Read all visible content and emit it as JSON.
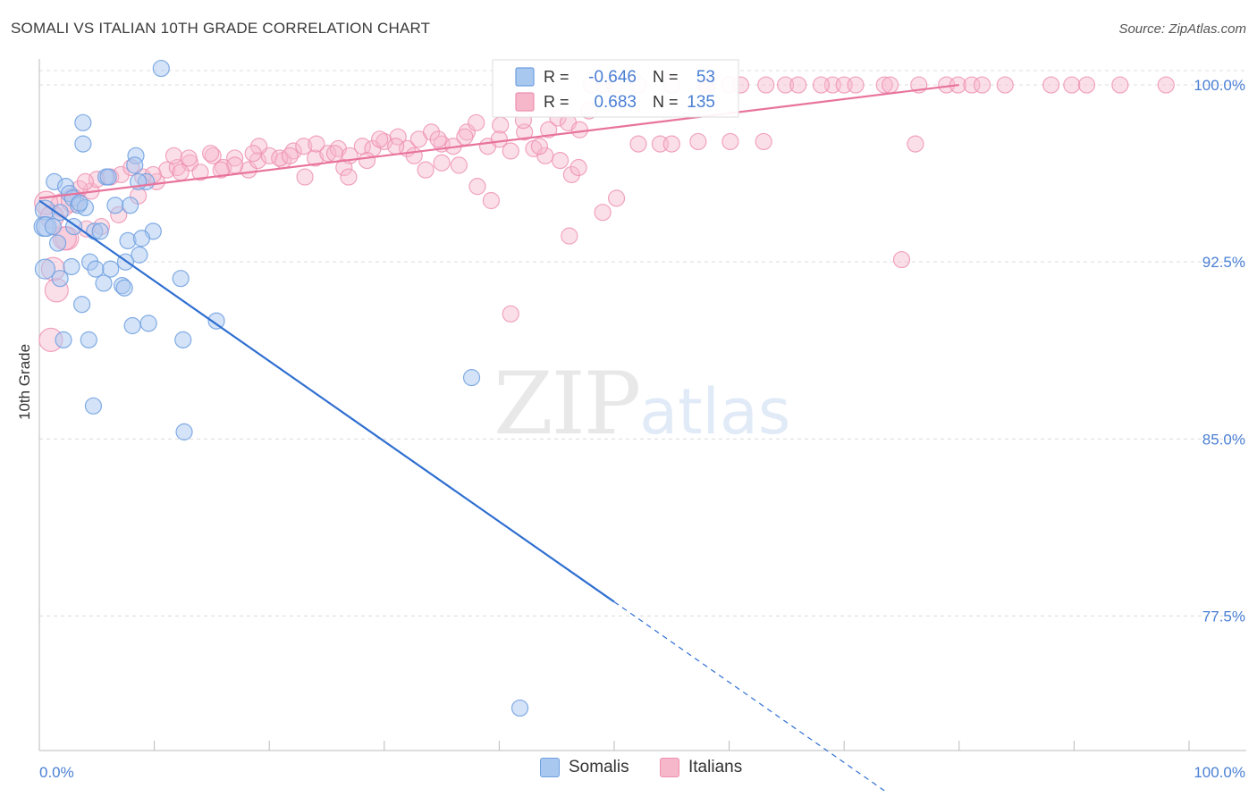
{
  "title": "SOMALI VS ITALIAN 10TH GRADE CORRELATION CHART",
  "source": "Source: ZipAtlas.com",
  "watermark": {
    "zip": "ZIP",
    "atlas": "atlas"
  },
  "colors": {
    "somali_fill": "#a9c8f0",
    "somali_stroke": "#6d9fe0",
    "somali_line": "#2f6fd1",
    "italian_fill": "#f6b7cb",
    "italian_stroke": "#ee8fb0",
    "italian_line": "#e8739c",
    "axis_text": "#4a7fd4",
    "grid": "#dcdcdc"
  },
  "legend_top": {
    "rows": [
      {
        "r_label": "R =",
        "r_value": "-0.646",
        "n_label": "N =",
        "n_value": "53"
      },
      {
        "r_label": "R =",
        "r_value": "0.683",
        "n_label": "N =",
        "n_value": "135"
      }
    ]
  },
  "legend_bottom": {
    "items": [
      "Somalis",
      "Italians"
    ]
  },
  "chart_data": {
    "type": "scatter",
    "title": "SOMALI VS ITALIAN 10TH GRADE CORRELATION CHART",
    "xlabel": "",
    "ylabel": "10th Grade",
    "xlim": [
      0,
      100
    ],
    "ylim": [
      71.8,
      101.1
    ],
    "x_tick_labels": [
      "0.0%",
      "100.0%"
    ],
    "y_ticks": [
      100.0,
      92.5,
      85.0,
      77.5
    ],
    "y_tick_labels": [
      "100.0%",
      "92.5%",
      "85.0%",
      "77.5%"
    ],
    "grid": "horizontal dashed",
    "series": [
      {
        "name": "Somalis",
        "r": -0.646,
        "n": 53,
        "trend": {
          "x": [
            0.0,
            50.0
          ],
          "y": [
            95.1,
            78.1
          ],
          "dashed_to": [
            73.5,
            70.1
          ]
        },
        "points": [
          [
            10.6,
            100.7
          ],
          [
            3.8,
            98.4
          ],
          [
            3.8,
            97.5
          ],
          [
            8.4,
            97.0
          ],
          [
            8.3,
            96.6
          ],
          [
            5.8,
            96.1
          ],
          [
            1.3,
            95.9
          ],
          [
            9.3,
            95.9
          ],
          [
            2.3,
            95.7
          ],
          [
            2.6,
            95.4
          ],
          [
            2.9,
            95.2
          ],
          [
            3.4,
            94.9
          ],
          [
            4.0,
            94.8
          ],
          [
            6.6,
            94.9
          ],
          [
            7.9,
            94.9
          ],
          [
            0.5,
            94.7
          ],
          [
            1.8,
            94.6
          ],
          [
            0.4,
            94.0
          ],
          [
            0.6,
            94.0
          ],
          [
            1.2,
            94.0
          ],
          [
            3.0,
            94.0
          ],
          [
            4.8,
            93.8
          ],
          [
            5.3,
            93.8
          ],
          [
            9.9,
            93.8
          ],
          [
            1.6,
            93.3
          ],
          [
            7.7,
            93.4
          ],
          [
            8.9,
            93.5
          ],
          [
            8.7,
            92.8
          ],
          [
            4.4,
            92.5
          ],
          [
            7.5,
            92.5
          ],
          [
            2.8,
            92.3
          ],
          [
            4.9,
            92.2
          ],
          [
            6.2,
            92.2
          ],
          [
            0.5,
            92.2
          ],
          [
            1.8,
            91.8
          ],
          [
            12.3,
            91.8
          ],
          [
            5.6,
            91.6
          ],
          [
            7.2,
            91.5
          ],
          [
            7.4,
            91.4
          ],
          [
            3.7,
            90.7
          ],
          [
            15.4,
            90.0
          ],
          [
            8.1,
            89.8
          ],
          [
            9.5,
            89.9
          ],
          [
            2.1,
            89.2
          ],
          [
            4.3,
            89.2
          ],
          [
            12.5,
            89.2
          ],
          [
            37.6,
            87.6
          ],
          [
            4.7,
            86.4
          ],
          [
            12.6,
            85.3
          ],
          [
            41.8,
            73.6
          ],
          [
            8.6,
            95.9
          ],
          [
            6.0,
            96.1
          ],
          [
            3.5,
            95.0
          ]
        ]
      },
      {
        "name": "Italians",
        "r": 0.683,
        "n": 135,
        "trend": {
          "x": [
            0.0,
            80.0
          ],
          "y": [
            95.2,
            100.0
          ]
        },
        "points": [
          [
            1.2,
            92.2
          ],
          [
            1.5,
            91.3
          ],
          [
            1.0,
            89.2
          ],
          [
            2.4,
            93.5
          ],
          [
            4.1,
            93.9
          ],
          [
            4.5,
            95.5
          ],
          [
            5.0,
            96.0
          ],
          [
            2.0,
            94.9
          ],
          [
            3.5,
            95.6
          ],
          [
            6.2,
            96.1
          ],
          [
            7.1,
            96.2
          ],
          [
            8.0,
            96.5
          ],
          [
            9.0,
            96.1
          ],
          [
            10.2,
            95.9
          ],
          [
            11.1,
            96.4
          ],
          [
            12.0,
            96.5
          ],
          [
            13.1,
            96.7
          ],
          [
            14.0,
            96.3
          ],
          [
            15.1,
            97.0
          ],
          [
            16.0,
            96.5
          ],
          [
            17.0,
            96.9
          ],
          [
            18.2,
            96.4
          ],
          [
            19.0,
            96.8
          ],
          [
            20.0,
            97.0
          ],
          [
            21.2,
            96.8
          ],
          [
            22.1,
            97.2
          ],
          [
            23.0,
            97.4
          ],
          [
            24.0,
            96.9
          ],
          [
            25.1,
            97.1
          ],
          [
            26.0,
            97.3
          ],
          [
            27.0,
            97.0
          ],
          [
            28.1,
            97.4
          ],
          [
            29.0,
            97.3
          ],
          [
            30.0,
            97.6
          ],
          [
            31.2,
            97.8
          ],
          [
            32.0,
            97.3
          ],
          [
            33.0,
            97.7
          ],
          [
            34.1,
            98.0
          ],
          [
            35.0,
            97.5
          ],
          [
            36.0,
            97.4
          ],
          [
            37.2,
            98.0
          ],
          [
            38.0,
            98.4
          ],
          [
            39.0,
            97.4
          ],
          [
            40.1,
            98.3
          ],
          [
            41.0,
            97.2
          ],
          [
            42.2,
            98.0
          ],
          [
            43.0,
            97.3
          ],
          [
            44.0,
            97.0
          ],
          [
            45.1,
            98.6
          ],
          [
            46.0,
            98.4
          ],
          [
            47.0,
            98.1
          ],
          [
            48.0,
            100.0
          ],
          [
            49.1,
            100.0
          ],
          [
            50.0,
            100.0
          ],
          [
            52.1,
            100.0
          ],
          [
            55.0,
            100.0
          ],
          [
            57.9,
            100.0
          ],
          [
            60.0,
            100.0
          ],
          [
            61.0,
            100.0
          ],
          [
            63.2,
            100.0
          ],
          [
            64.9,
            100.0
          ],
          [
            66.0,
            100.0
          ],
          [
            69.0,
            100.0
          ],
          [
            70.0,
            100.0
          ],
          [
            71.0,
            100.0
          ],
          [
            73.5,
            100.0
          ],
          [
            76.5,
            100.0
          ],
          [
            78.9,
            100.0
          ],
          [
            79.9,
            100.0
          ],
          [
            81.1,
            100.0
          ],
          [
            84.0,
            100.0
          ],
          [
            88.0,
            100.0
          ],
          [
            89.8,
            100.0
          ],
          [
            91.1,
            100.0
          ],
          [
            94.0,
            100.0
          ],
          [
            98.0,
            100.0
          ],
          [
            47.8,
            98.9
          ],
          [
            26.5,
            96.5
          ],
          [
            20.9,
            96.9
          ],
          [
            19.1,
            97.4
          ],
          [
            17.0,
            96.6
          ],
          [
            12.3,
            96.3
          ],
          [
            4.0,
            95.9
          ],
          [
            2.9,
            95.1
          ],
          [
            23.1,
            96.1
          ],
          [
            26.9,
            96.1
          ],
          [
            28.5,
            96.8
          ],
          [
            33.6,
            96.4
          ],
          [
            35.0,
            96.7
          ],
          [
            36.5,
            96.6
          ],
          [
            38.1,
            95.7
          ],
          [
            39.3,
            95.1
          ],
          [
            43.5,
            97.4
          ],
          [
            45.3,
            96.8
          ],
          [
            46.3,
            96.2
          ],
          [
            46.9,
            96.5
          ],
          [
            49.0,
            94.6
          ],
          [
            50.2,
            95.2
          ],
          [
            52.1,
            97.5
          ],
          [
            54.0,
            97.5
          ],
          [
            55.0,
            97.5
          ],
          [
            57.3,
            97.6
          ],
          [
            60.1,
            97.6
          ],
          [
            63.0,
            97.6
          ],
          [
            46.1,
            93.6
          ],
          [
            41.0,
            90.3
          ],
          [
            75.0,
            92.6
          ],
          [
            76.2,
            97.5
          ],
          [
            0.6,
            95.0
          ],
          [
            1.1,
            94.4
          ],
          [
            2.2,
            93.5
          ],
          [
            5.4,
            94.0
          ],
          [
            6.9,
            94.5
          ],
          [
            8.6,
            95.3
          ],
          [
            9.9,
            96.2
          ],
          [
            11.7,
            97.0
          ],
          [
            13.0,
            96.9
          ],
          [
            14.9,
            97.1
          ],
          [
            15.8,
            96.4
          ],
          [
            18.6,
            97.1
          ],
          [
            21.8,
            97.0
          ],
          [
            24.1,
            97.5
          ],
          [
            25.7,
            97.1
          ],
          [
            29.6,
            97.7
          ],
          [
            31.0,
            97.4
          ],
          [
            32.6,
            97.0
          ],
          [
            34.7,
            97.7
          ],
          [
            37.0,
            97.8
          ],
          [
            40.0,
            97.7
          ],
          [
            42.1,
            98.5
          ],
          [
            44.3,
            98.1
          ],
          [
            58.1,
            100.0
          ],
          [
            68.0,
            100.0
          ],
          [
            74.0,
            100.0
          ],
          [
            82.0,
            100.0
          ]
        ]
      }
    ]
  }
}
